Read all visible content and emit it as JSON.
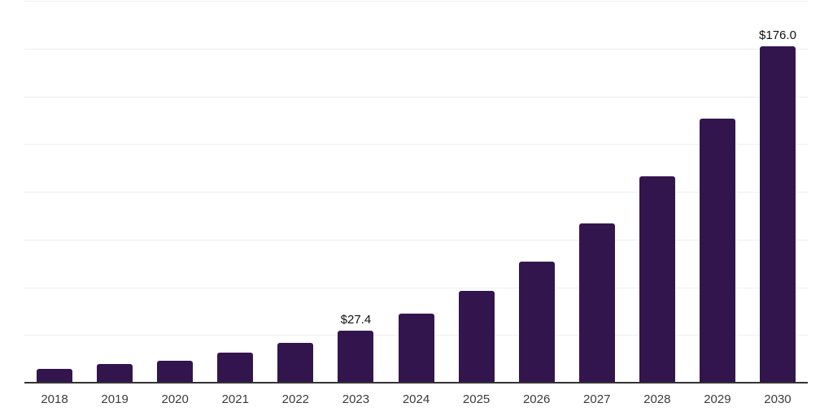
{
  "chart_data": {
    "type": "bar",
    "title": "",
    "xlabel": "",
    "ylabel": "",
    "categories": [
      "2018",
      "2019",
      "2020",
      "2021",
      "2022",
      "2023",
      "2024",
      "2025",
      "2026",
      "2027",
      "2028",
      "2029",
      "2030"
    ],
    "values": [
      7.2,
      9.6,
      11.7,
      15.7,
      20.8,
      27.4,
      36.3,
      48.2,
      63.5,
      83.2,
      107.9,
      138.5,
      176.0
    ],
    "value_labels": [
      "",
      "",
      "",
      "",
      "",
      "$27.4",
      "",
      "",
      "",
      "",
      "",
      "",
      "$176.0"
    ],
    "ylim": [
      0,
      200
    ],
    "grid_step": 25,
    "grid": true,
    "legend": false,
    "y_tick_labels_shown": false,
    "colors": {
      "bar": "#33154e",
      "gridline": "#efefef",
      "axis": "#333333",
      "tick_label": "#3b3b3b",
      "value_label": "#111111",
      "background": "#ffffff"
    }
  }
}
